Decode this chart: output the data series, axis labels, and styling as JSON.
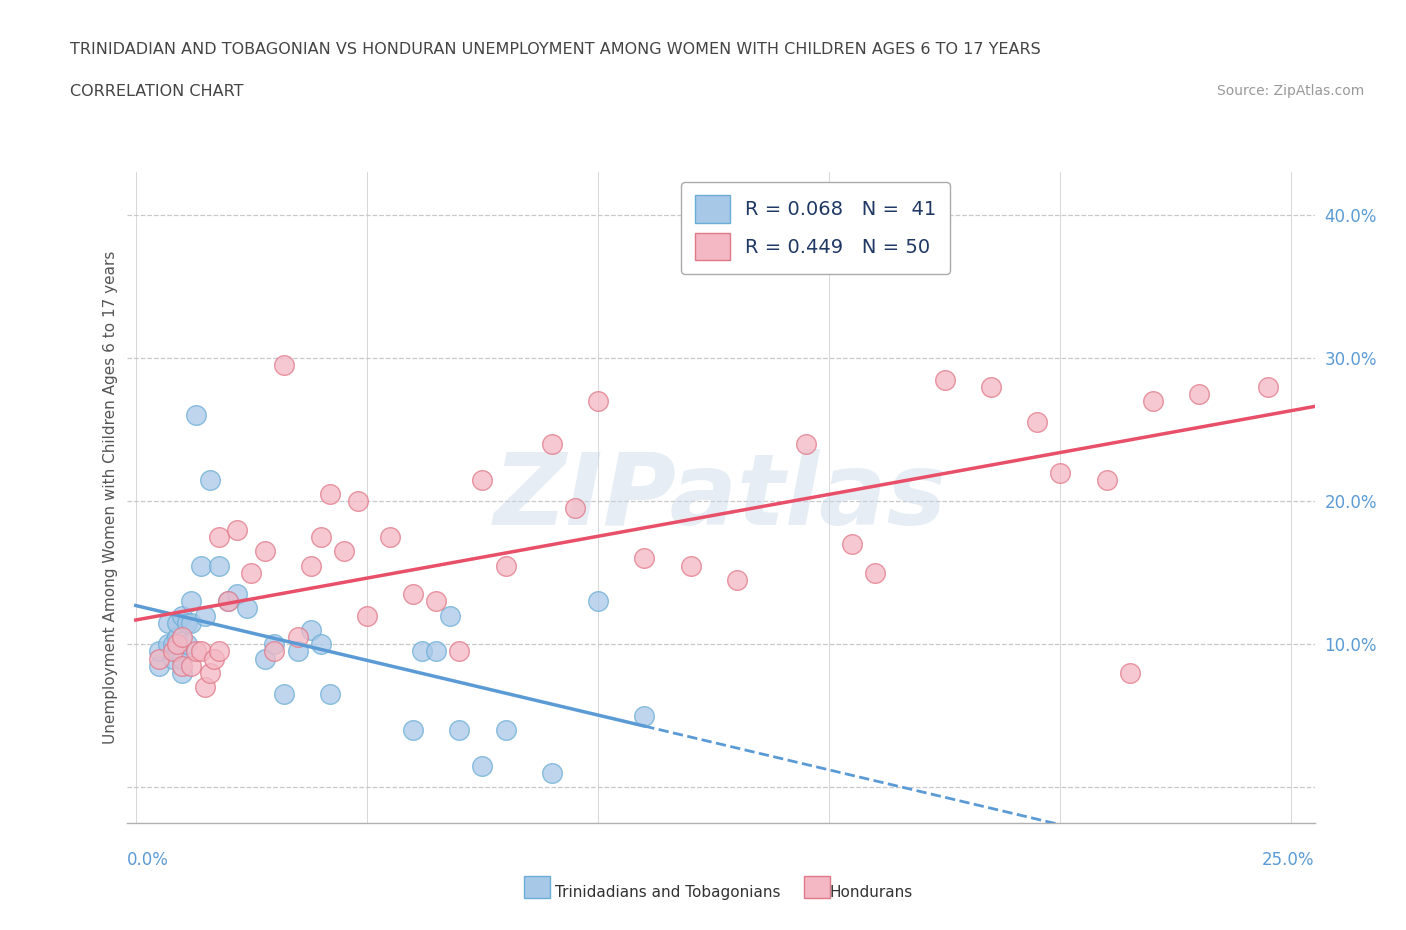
{
  "title_line1": "TRINIDADIAN AND TOBAGONIAN VS HONDURAN UNEMPLOYMENT AMONG WOMEN WITH CHILDREN AGES 6 TO 17 YEARS",
  "title_line2": "CORRELATION CHART",
  "source_text": "Source: ZipAtlas.com",
  "ylabel": "Unemployment Among Women with Children Ages 6 to 17 years",
  "xlim": [
    -0.002,
    0.255
  ],
  "ylim": [
    -0.025,
    0.43
  ],
  "yticks": [
    0.0,
    0.1,
    0.2,
    0.3,
    0.4
  ],
  "ytick_labels_right": [
    "",
    "10.0%",
    "20.0%",
    "30.0%",
    "40.0%"
  ],
  "background_color": "#ffffff",
  "grid_color": "#c8c8c8",
  "color_blue": "#a8c8e8",
  "color_blue_edge": "#6aaed6",
  "color_pink": "#f4b8c4",
  "color_pink_edge": "#e07888",
  "color_blue_line": "#5b9bd5",
  "color_pink_line": "#e8506a",
  "legend_label1": "Trinidadians and Tobagonians",
  "legend_label2": "Hondurans",
  "blue_x": [
    0.005,
    0.005,
    0.007,
    0.007,
    0.008,
    0.008,
    0.009,
    0.009,
    0.009,
    0.01,
    0.01,
    0.01,
    0.011,
    0.011,
    0.012,
    0.012,
    0.013,
    0.014,
    0.015,
    0.016,
    0.018,
    0.02,
    0.022,
    0.024,
    0.028,
    0.03,
    0.032,
    0.035,
    0.038,
    0.04,
    0.042,
    0.06,
    0.062,
    0.065,
    0.068,
    0.07,
    0.075,
    0.08,
    0.09,
    0.1,
    0.11
  ],
  "blue_y": [
    0.085,
    0.095,
    0.1,
    0.115,
    0.09,
    0.1,
    0.095,
    0.105,
    0.115,
    0.08,
    0.09,
    0.12,
    0.1,
    0.115,
    0.115,
    0.13,
    0.26,
    0.155,
    0.12,
    0.215,
    0.155,
    0.13,
    0.135,
    0.125,
    0.09,
    0.1,
    0.065,
    0.095,
    0.11,
    0.1,
    0.065,
    0.04,
    0.095,
    0.095,
    0.12,
    0.04,
    0.015,
    0.04,
    0.01,
    0.13,
    0.05
  ],
  "pink_x": [
    0.005,
    0.008,
    0.009,
    0.01,
    0.01,
    0.012,
    0.013,
    0.014,
    0.015,
    0.016,
    0.017,
    0.018,
    0.018,
    0.02,
    0.022,
    0.025,
    0.028,
    0.03,
    0.032,
    0.035,
    0.038,
    0.04,
    0.042,
    0.045,
    0.048,
    0.05,
    0.055,
    0.06,
    0.065,
    0.07,
    0.075,
    0.08,
    0.09,
    0.095,
    0.1,
    0.11,
    0.12,
    0.13,
    0.145,
    0.155,
    0.16,
    0.175,
    0.185,
    0.195,
    0.2,
    0.21,
    0.215,
    0.22,
    0.23,
    0.245
  ],
  "pink_y": [
    0.09,
    0.095,
    0.1,
    0.085,
    0.105,
    0.085,
    0.095,
    0.095,
    0.07,
    0.08,
    0.09,
    0.095,
    0.175,
    0.13,
    0.18,
    0.15,
    0.165,
    0.095,
    0.295,
    0.105,
    0.155,
    0.175,
    0.205,
    0.165,
    0.2,
    0.12,
    0.175,
    0.135,
    0.13,
    0.095,
    0.215,
    0.155,
    0.24,
    0.195,
    0.27,
    0.16,
    0.155,
    0.145,
    0.24,
    0.17,
    0.15,
    0.285,
    0.28,
    0.255,
    0.22,
    0.215,
    0.08,
    0.27,
    0.275,
    0.28
  ]
}
